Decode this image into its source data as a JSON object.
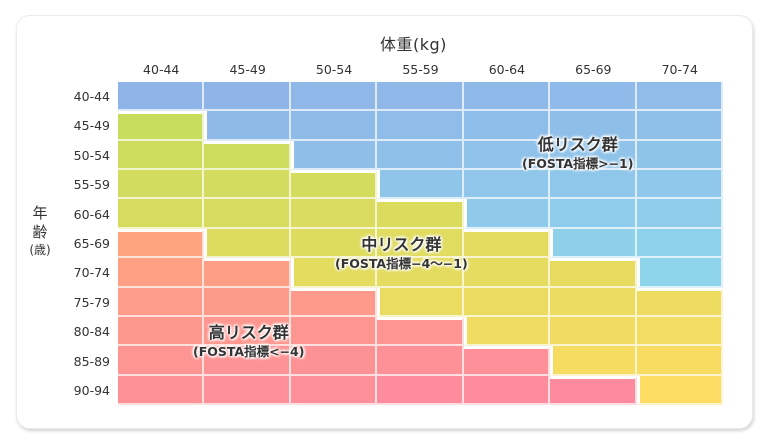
{
  "chart_data": {
    "type": "heatmap",
    "title": "",
    "xlabel": "体重(kg)",
    "ylabel": "年齢(歳)",
    "ylabel_parts": [
      "年",
      "齢",
      "(歳)"
    ],
    "x_categories": [
      "40-44",
      "45-49",
      "50-54",
      "55-59",
      "60-64",
      "65-69",
      "70-74"
    ],
    "y_categories": [
      "40-44",
      "45-49",
      "50-54",
      "55-59",
      "60-64",
      "65-69",
      "70-74",
      "75-79",
      "80-84",
      "85-89",
      "90-94"
    ],
    "zones": {
      "L": {
        "name": "低リスク群",
        "range": "(FOSTA指標>−1)",
        "color_top": "#8fb4e8",
        "color_bottom": "#8ee6ec"
      },
      "M": {
        "name": "中リスク群",
        "range": "(FOSTA指標−4〜−1)",
        "color_top": "#c3dc5c",
        "color_bottom": "#fcdc62"
      },
      "H": {
        "name": "高リスク群",
        "range": "(FOSTA指標<−4)",
        "color_top": "#fdb766",
        "color_bottom": "#fd8aa0"
      }
    },
    "values": [
      [
        "L",
        "L",
        "L",
        "L",
        "L",
        "L",
        "L"
      ],
      [
        "M",
        "L",
        "L",
        "L",
        "L",
        "L",
        "L"
      ],
      [
        "M",
        "M",
        "L",
        "L",
        "L",
        "L",
        "L"
      ],
      [
        "M",
        "M",
        "M",
        "L",
        "L",
        "L",
        "L"
      ],
      [
        "M",
        "M",
        "M",
        "M",
        "L",
        "L",
        "L"
      ],
      [
        "H",
        "M",
        "M",
        "M",
        "M",
        "L",
        "L"
      ],
      [
        "H",
        "H",
        "M",
        "M",
        "M",
        "M",
        "L"
      ],
      [
        "H",
        "H",
        "H",
        "M",
        "M",
        "M",
        "M"
      ],
      [
        "H",
        "H",
        "H",
        "H",
        "M",
        "M",
        "M"
      ],
      [
        "H",
        "H",
        "H",
        "H",
        "H",
        "M",
        "M"
      ],
      [
        "H",
        "H",
        "H",
        "H",
        "H",
        "H",
        "M"
      ]
    ],
    "legend_position": "inline annotations"
  }
}
